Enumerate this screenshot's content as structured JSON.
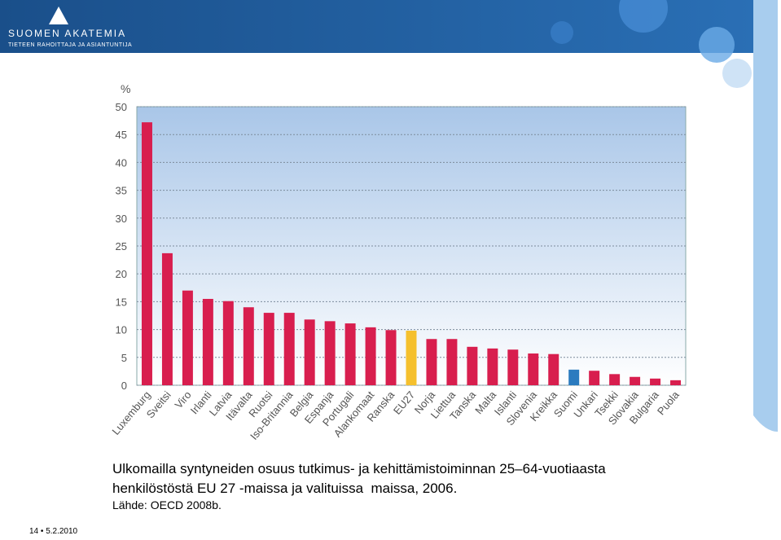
{
  "header": {
    "organization": "Suomen Akatemia",
    "tagline": "Tieteen rahoittaja ja asiantuntija"
  },
  "chart_data": {
    "type": "bar",
    "y_label": "%",
    "categories": [
      "Luxemburg",
      "Sveitsi",
      "Viro",
      "Irlanti",
      "Latvia",
      "Itävalta",
      "Ruotsi",
      "Iso-Britannia",
      "Belgia",
      "Espanja",
      "Portugali",
      "Alankomaat",
      "Ranska",
      "EU27",
      "Norja",
      "Liettua",
      "Tanska",
      "Malta",
      "Islanti",
      "Slovenia",
      "Kreikka",
      "Suomi",
      "Unkari",
      "Tsekki",
      "Slovakia",
      "Bulgaria",
      "Puola"
    ],
    "values": [
      47.2,
      23.7,
      17.0,
      15.5,
      15.1,
      14.0,
      13.0,
      13.0,
      11.8,
      11.5,
      11.1,
      10.4,
      9.9,
      9.8,
      8.3,
      8.3,
      6.9,
      6.6,
      6.4,
      5.7,
      5.6,
      2.8,
      2.6,
      2.0,
      1.5,
      1.2,
      0.9
    ],
    "colors": [
      "#d81e4e",
      "#d81e4e",
      "#d81e4e",
      "#d81e4e",
      "#d81e4e",
      "#d81e4e",
      "#d81e4e",
      "#d81e4e",
      "#d81e4e",
      "#d81e4e",
      "#d81e4e",
      "#d81e4e",
      "#d81e4e",
      "#f5c02d",
      "#d81e4e",
      "#d81e4e",
      "#d81e4e",
      "#d81e4e",
      "#d81e4e",
      "#d81e4e",
      "#d81e4e",
      "#2b7bbf",
      "#d81e4e",
      "#d81e4e",
      "#d81e4e",
      "#d81e4e",
      "#d81e4e"
    ],
    "ylim": [
      0,
      50
    ],
    "yticks": [
      0,
      5,
      10,
      15,
      20,
      25,
      30,
      35,
      40,
      45,
      50
    ],
    "grid": true
  },
  "caption": [
    "Ulkomailla syntyneiden osuus tutkimus- ja kehittämistoiminnan 25–64-vuotiaasta",
    "henkilöstöstä EU 27 -maissa ja valituissa  maissa, 2006."
  ],
  "source": "Lähde: OECD 2008b.",
  "footer": {
    "page": "14",
    "date": "5.2.2010"
  }
}
